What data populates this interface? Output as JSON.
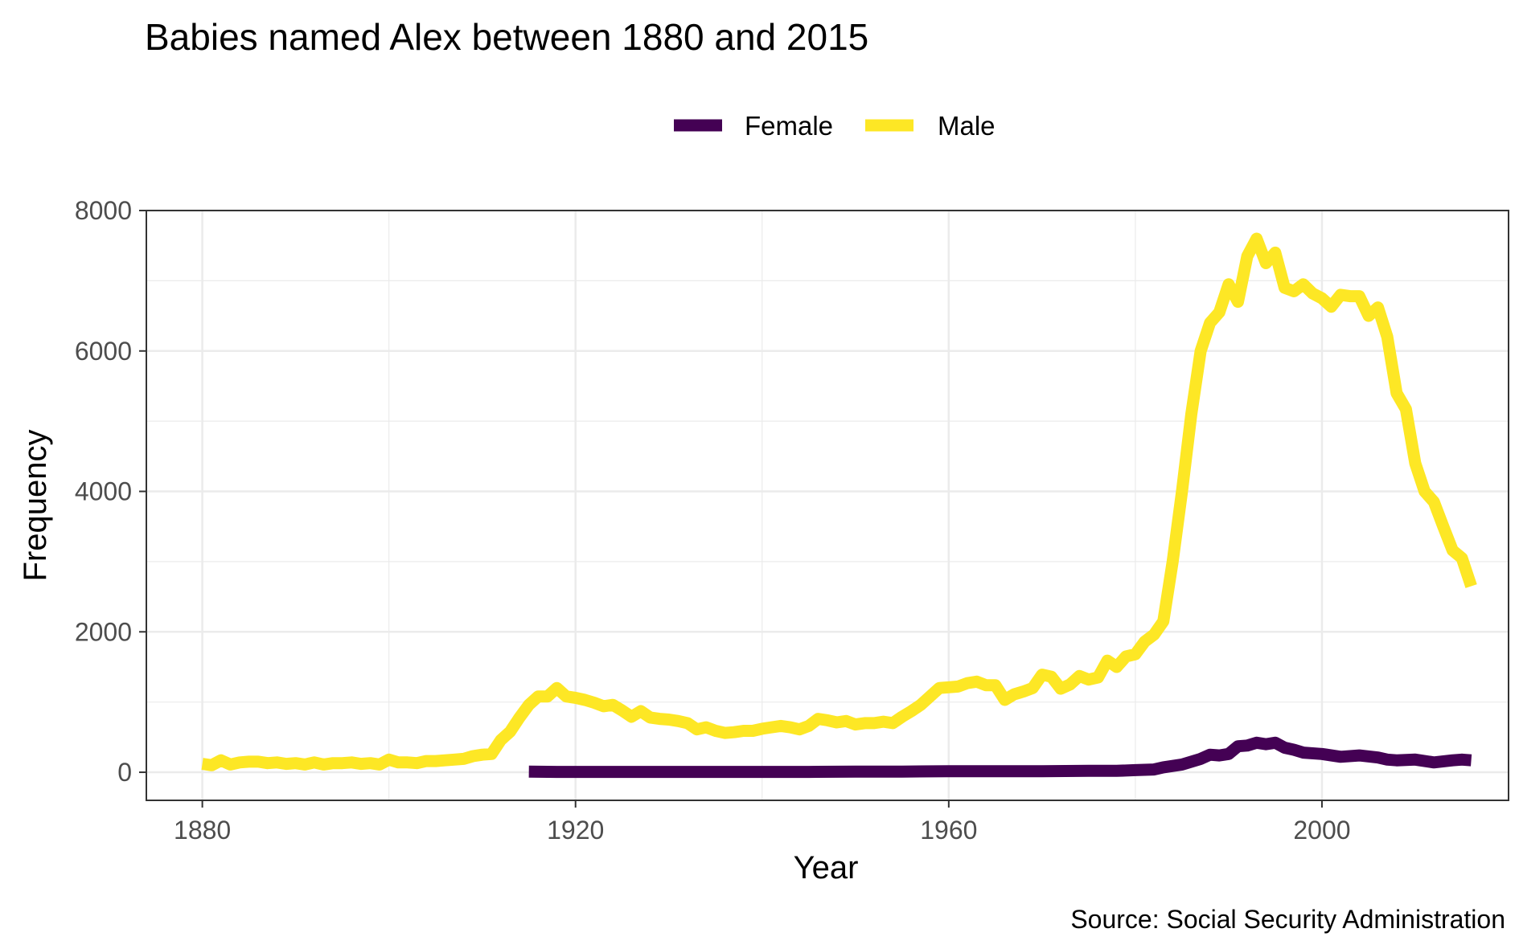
{
  "chart_data": {
    "type": "line",
    "title": "Babies named Alex between 1880 and 2015",
    "xlabel": "Year",
    "ylabel": "Frequency",
    "caption": "Source: Social Security Administration",
    "xlim": [
      1874,
      2020
    ],
    "ylim": [
      -400,
      8000
    ],
    "x_ticks": [
      1880,
      1920,
      1960,
      2000
    ],
    "y_ticks": [
      0,
      2000,
      4000,
      6000,
      8000
    ],
    "grid": true,
    "legend_position": "top",
    "series": [
      {
        "name": "Female",
        "color": "#440154",
        "points": [
          [
            1915,
            10
          ],
          [
            1918,
            5
          ],
          [
            1922,
            5
          ],
          [
            1926,
            5
          ],
          [
            1930,
            5
          ],
          [
            1935,
            5
          ],
          [
            1940,
            5
          ],
          [
            1945,
            5
          ],
          [
            1950,
            10
          ],
          [
            1955,
            10
          ],
          [
            1960,
            15
          ],
          [
            1965,
            15
          ],
          [
            1970,
            15
          ],
          [
            1975,
            20
          ],
          [
            1978,
            20
          ],
          [
            1980,
            30
          ],
          [
            1982,
            40
          ],
          [
            1983,
            70
          ],
          [
            1985,
            110
          ],
          [
            1987,
            190
          ],
          [
            1988,
            250
          ],
          [
            1989,
            240
          ],
          [
            1990,
            260
          ],
          [
            1991,
            370
          ],
          [
            1992,
            380
          ],
          [
            1993,
            420
          ],
          [
            1994,
            400
          ],
          [
            1995,
            420
          ],
          [
            1996,
            350
          ],
          [
            1997,
            320
          ],
          [
            1998,
            280
          ],
          [
            2000,
            260
          ],
          [
            2002,
            220
          ],
          [
            2004,
            240
          ],
          [
            2006,
            210
          ],
          [
            2007,
            180
          ],
          [
            2008,
            170
          ],
          [
            2010,
            180
          ],
          [
            2012,
            140
          ],
          [
            2014,
            170
          ],
          [
            2015,
            180
          ],
          [
            2016,
            170
          ]
        ]
      },
      {
        "name": "Male",
        "color": "#FDE725",
        "points": [
          [
            1880,
            120
          ],
          [
            1881,
            100
          ],
          [
            1882,
            170
          ],
          [
            1883,
            110
          ],
          [
            1884,
            140
          ],
          [
            1885,
            150
          ],
          [
            1886,
            150
          ],
          [
            1887,
            130
          ],
          [
            1888,
            140
          ],
          [
            1889,
            120
          ],
          [
            1890,
            130
          ],
          [
            1891,
            110
          ],
          [
            1892,
            140
          ],
          [
            1893,
            110
          ],
          [
            1894,
            130
          ],
          [
            1895,
            130
          ],
          [
            1896,
            140
          ],
          [
            1897,
            120
          ],
          [
            1898,
            130
          ],
          [
            1899,
            110
          ],
          [
            1900,
            180
          ],
          [
            1901,
            140
          ],
          [
            1902,
            140
          ],
          [
            1903,
            130
          ],
          [
            1904,
            160
          ],
          [
            1905,
            160
          ],
          [
            1906,
            170
          ],
          [
            1907,
            180
          ],
          [
            1908,
            190
          ],
          [
            1909,
            230
          ],
          [
            1910,
            250
          ],
          [
            1911,
            260
          ],
          [
            1912,
            460
          ],
          [
            1913,
            580
          ],
          [
            1914,
            780
          ],
          [
            1915,
            960
          ],
          [
            1916,
            1080
          ],
          [
            1917,
            1080
          ],
          [
            1918,
            1200
          ],
          [
            1919,
            1080
          ],
          [
            1920,
            1060
          ],
          [
            1921,
            1030
          ],
          [
            1922,
            990
          ],
          [
            1923,
            940
          ],
          [
            1924,
            960
          ],
          [
            1925,
            880
          ],
          [
            1926,
            790
          ],
          [
            1927,
            870
          ],
          [
            1928,
            780
          ],
          [
            1929,
            760
          ],
          [
            1930,
            750
          ],
          [
            1931,
            730
          ],
          [
            1932,
            700
          ],
          [
            1933,
            610
          ],
          [
            1934,
            640
          ],
          [
            1935,
            590
          ],
          [
            1936,
            560
          ],
          [
            1937,
            570
          ],
          [
            1938,
            590
          ],
          [
            1939,
            590
          ],
          [
            1940,
            620
          ],
          [
            1941,
            640
          ],
          [
            1942,
            660
          ],
          [
            1943,
            640
          ],
          [
            1944,
            610
          ],
          [
            1945,
            660
          ],
          [
            1946,
            760
          ],
          [
            1947,
            740
          ],
          [
            1948,
            710
          ],
          [
            1949,
            730
          ],
          [
            1950,
            680
          ],
          [
            1951,
            700
          ],
          [
            1952,
            700
          ],
          [
            1953,
            720
          ],
          [
            1954,
            700
          ],
          [
            1955,
            790
          ],
          [
            1956,
            870
          ],
          [
            1957,
            960
          ],
          [
            1958,
            1080
          ],
          [
            1959,
            1200
          ],
          [
            1960,
            1210
          ],
          [
            1961,
            1220
          ],
          [
            1962,
            1270
          ],
          [
            1963,
            1290
          ],
          [
            1964,
            1240
          ],
          [
            1965,
            1240
          ],
          [
            1966,
            1030
          ],
          [
            1967,
            1110
          ],
          [
            1968,
            1150
          ],
          [
            1969,
            1200
          ],
          [
            1970,
            1390
          ],
          [
            1971,
            1360
          ],
          [
            1972,
            1190
          ],
          [
            1973,
            1250
          ],
          [
            1974,
            1370
          ],
          [
            1975,
            1320
          ],
          [
            1976,
            1350
          ],
          [
            1977,
            1590
          ],
          [
            1978,
            1500
          ],
          [
            1979,
            1650
          ],
          [
            1980,
            1680
          ],
          [
            1981,
            1860
          ],
          [
            1982,
            1960
          ],
          [
            1983,
            2150
          ],
          [
            1984,
            3000
          ],
          [
            1985,
            4000
          ],
          [
            1986,
            5100
          ],
          [
            1987,
            6000
          ],
          [
            1988,
            6400
          ],
          [
            1989,
            6550
          ],
          [
            1990,
            6950
          ],
          [
            1991,
            6700
          ],
          [
            1992,
            7350
          ],
          [
            1993,
            7600
          ],
          [
            1994,
            7250
          ],
          [
            1995,
            7400
          ],
          [
            1996,
            6900
          ],
          [
            1997,
            6850
          ],
          [
            1998,
            6950
          ],
          [
            1999,
            6820
          ],
          [
            2000,
            6750
          ],
          [
            2001,
            6630
          ],
          [
            2002,
            6800
          ],
          [
            2003,
            6780
          ],
          [
            2004,
            6780
          ],
          [
            2005,
            6500
          ],
          [
            2006,
            6620
          ],
          [
            2007,
            6200
          ],
          [
            2008,
            5400
          ],
          [
            2009,
            5170
          ],
          [
            2010,
            4400
          ],
          [
            2011,
            4000
          ],
          [
            2012,
            3850
          ],
          [
            2013,
            3500
          ],
          [
            2014,
            3160
          ],
          [
            2015,
            3050
          ],
          [
            2016,
            2650
          ]
        ]
      }
    ]
  }
}
